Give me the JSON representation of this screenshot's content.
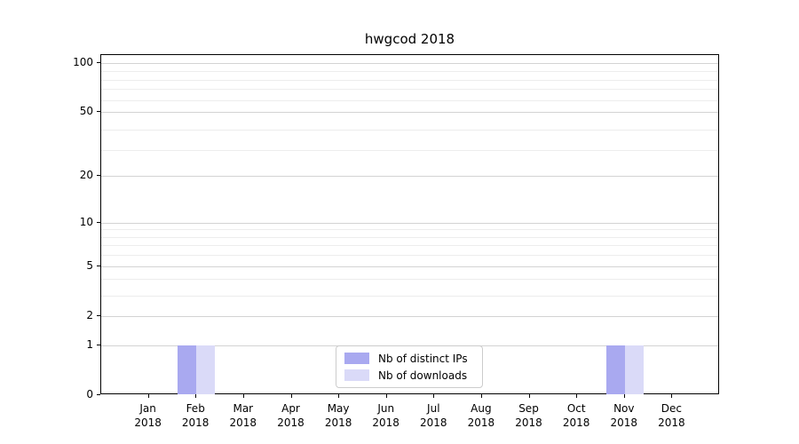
{
  "chart_data": {
    "type": "bar",
    "title": "hwgcod 2018",
    "categories": [
      {
        "month": "Jan",
        "year": "2018"
      },
      {
        "month": "Feb",
        "year": "2018"
      },
      {
        "month": "Mar",
        "year": "2018"
      },
      {
        "month": "Apr",
        "year": "2018"
      },
      {
        "month": "May",
        "year": "2018"
      },
      {
        "month": "Jun",
        "year": "2018"
      },
      {
        "month": "Jul",
        "year": "2018"
      },
      {
        "month": "Aug",
        "year": "2018"
      },
      {
        "month": "Sep",
        "year": "2018"
      },
      {
        "month": "Oct",
        "year": "2018"
      },
      {
        "month": "Nov",
        "year": "2018"
      },
      {
        "month": "Dec",
        "year": "2018"
      }
    ],
    "series": [
      {
        "name": "Nb of distinct IPs",
        "color": "#a9a9f0",
        "values": [
          0,
          1,
          0,
          0,
          0,
          0,
          0,
          0,
          0,
          0,
          1,
          0
        ]
      },
      {
        "name": "Nb of downloads",
        "color": "#dadaf8",
        "values": [
          0,
          1,
          0,
          0,
          0,
          0,
          0,
          0,
          0,
          0,
          1,
          0
        ]
      }
    ],
    "y_axis": {
      "scale": "log1p",
      "ticks": [
        0,
        1,
        2,
        5,
        10,
        20,
        50,
        100
      ],
      "minor_gridline_values": [
        3,
        4,
        6,
        7,
        8,
        9,
        29,
        39,
        59,
        69,
        79,
        89
      ],
      "ylim": [
        0,
        111
      ]
    },
    "x_axis": {
      "tick_label_lines": 2
    },
    "grid": true,
    "legend": {
      "position": "lower center"
    },
    "colors": {
      "major_grid": "#d3d3d3",
      "minor_grid": "#ededed",
      "spine": "#000000",
      "text": "#000000",
      "background": "#ffffff"
    }
  }
}
